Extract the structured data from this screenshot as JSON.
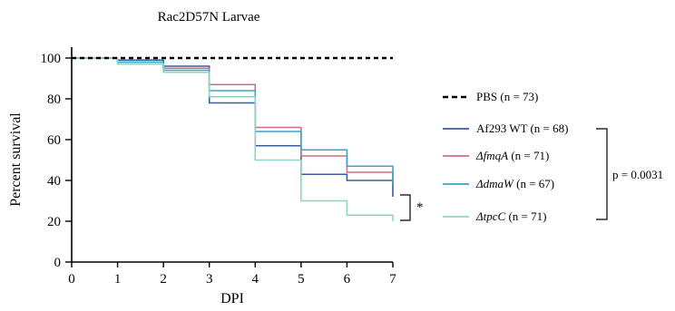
{
  "chart_data": {
    "type": "line",
    "step": true,
    "title": "Rac2D57N Larvae",
    "xlabel": "DPI",
    "ylabel": "Percent survival",
    "xlim": [
      0,
      7
    ],
    "ylim": [
      0,
      100
    ],
    "x_ticks": [
      "0",
      "1",
      "2",
      "3",
      "4",
      "5",
      "6",
      "7"
    ],
    "y_ticks": [
      "0",
      "20",
      "40",
      "60",
      "80",
      "100"
    ],
    "grid": false,
    "legend_position": "right",
    "x": [
      0,
      1,
      2,
      3,
      4,
      5,
      6,
      7
    ],
    "series": [
      {
        "name": "PBS (n = 73)",
        "color": "#000000",
        "style": "dashed",
        "values": [
          100,
          100,
          100,
          100,
          100,
          100,
          100,
          100
        ]
      },
      {
        "name": "Af293 WT (n = 68)",
        "name_italic": "",
        "name_rest": "Af293 WT (n = 68)",
        "color": "#3b5c9e",
        "style": "solid",
        "values": [
          100,
          99,
          96,
          78,
          57,
          43,
          40,
          32
        ]
      },
      {
        "name": "ΔfmqA (n = 71)",
        "name_italic": "ΔfmqA",
        "name_rest": " (n = 71)",
        "color": "#cf6f86",
        "style": "solid",
        "values": [
          100,
          98,
          95,
          87,
          66,
          52,
          44,
          38
        ]
      },
      {
        "name": "ΔdmaW (n = 67)",
        "name_italic": "ΔdmaW",
        "name_rest": " (n = 67)",
        "color": "#38a6c4",
        "style": "solid",
        "values": [
          100,
          98,
          94,
          84,
          64,
          55,
          47,
          38
        ]
      },
      {
        "name": "ΔtpcC (n = 71)",
        "name_italic": "ΔtpcC",
        "name_rest": " (n = 71)",
        "color": "#8fd3c7",
        "style": "solid",
        "values": [
          100,
          97,
          93,
          81,
          50,
          30,
          23,
          20
        ]
      }
    ],
    "annotations": {
      "p_value": "p = 0.0031",
      "significance": "*"
    }
  }
}
